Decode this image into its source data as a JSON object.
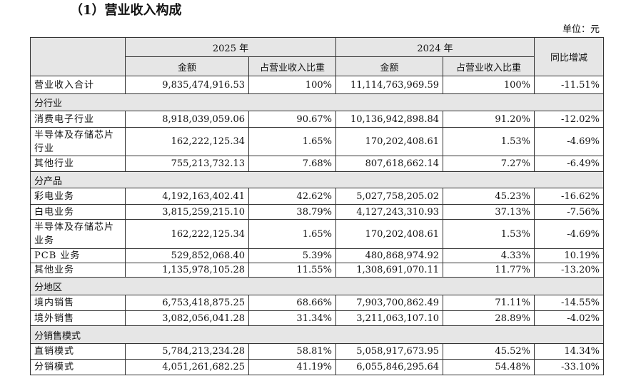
{
  "title": "（1）营业收入构成",
  "unit": "单位：元",
  "table": {
    "header": {
      "years": [
        "2025 年",
        "2024 年"
      ],
      "columns": [
        "金额",
        "占营业收入比重",
        "金额",
        "占营业收入比重"
      ],
      "change": "同比增减"
    },
    "rows": [
      [
        "营业收入合计",
        "9,835,474,916.53",
        "100%",
        "11,114,763,969.59",
        "100%",
        "-11.51%"
      ],
      [
        "分行业"
      ],
      [
        "消费电子行业",
        "8,918,039,059.06",
        "90.67%",
        "10,136,942,898.84",
        "91.20%",
        "-12.02%"
      ],
      [
        "半导体及存储芯片行业",
        "162,222,125.34",
        "1.65%",
        "170,202,408.61",
        "1.53%",
        "-4.69%"
      ],
      [
        "其他行业",
        "755,213,732.13",
        "7.68%",
        "807,618,662.14",
        "7.27%",
        "-6.49%"
      ],
      [
        "分产品"
      ],
      [
        "彩电业务",
        "4,192,163,402.41",
        "42.62%",
        "5,027,758,205.02",
        "45.23%",
        "-16.62%"
      ],
      [
        "白电业务",
        "3,815,259,215.10",
        "38.79%",
        "4,127,243,310.93",
        "37.13%",
        "-7.56%"
      ],
      [
        "半导体及存储芯片业务",
        "162,222,125.34",
        "1.65%",
        "170,202,408.61",
        "1.53%",
        "-4.69%"
      ],
      [
        "PCB 业务",
        "529,852,068.40",
        "5.39%",
        "480,868,974.92",
        "4.33%",
        "10.19%"
      ],
      [
        "其他业务",
        "1,135,978,105.28",
        "11.55%",
        "1,308,691,070.11",
        "11.77%",
        "-13.20%"
      ],
      [
        "分地区"
      ],
      [
        "境内销售",
        "6,753,418,875.25",
        "68.66%",
        "7,903,700,862.49",
        "71.11%",
        "-14.55%"
      ],
      [
        "境外销售",
        "3,082,056,041.28",
        "31.34%",
        "3,211,063,107.10",
        "28.89%",
        "-4.02%"
      ],
      [
        "分销售模式"
      ],
      [
        "直销模式",
        "5,784,213,234.28",
        "58.81%",
        "5,058,917,673.95",
        "45.52%",
        "14.34%"
      ],
      [
        "分销模式",
        "4,051,261,682.25",
        "41.19%",
        "6,055,846,295.64",
        "54.48%",
        "-33.10%"
      ]
    ]
  }
}
